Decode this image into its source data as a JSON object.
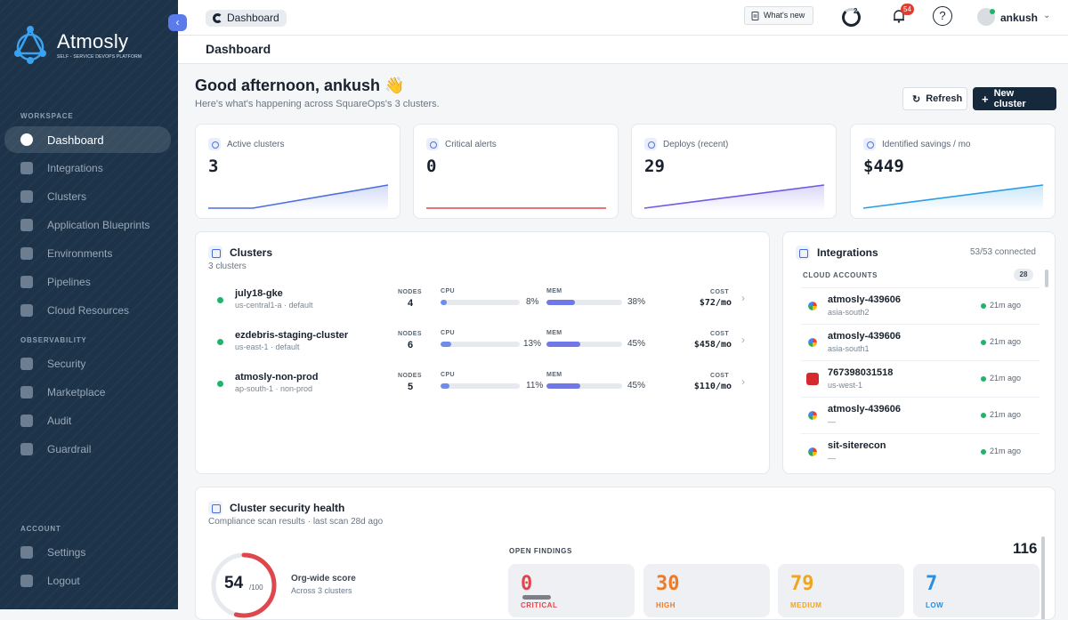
{
  "sidebar": {
    "brand": "Atmosly",
    "tagline": "SELF - SERVICE DEVOPS PLATFORM",
    "sections": {
      "workspace": "WORKSPACE",
      "observability": "OBSERVABILITY",
      "account": "ACCOUNT"
    },
    "items": [
      {
        "label": "Dashboard",
        "icon": "pie-chart-icon",
        "active": true
      },
      {
        "label": "Integrations",
        "icon": "integrations-icon"
      },
      {
        "label": "Clusters",
        "icon": "clusters-icon"
      },
      {
        "label": "Application Blueprints",
        "icon": "blueprint-icon"
      },
      {
        "label": "Environments",
        "icon": "cloud-icon"
      },
      {
        "label": "Pipelines",
        "icon": "pipelines-icon"
      },
      {
        "label": "Cloud Resources",
        "icon": "cloud-resources-icon"
      },
      {
        "label": "Security",
        "icon": "security-icon"
      },
      {
        "label": "Marketplace",
        "icon": "marketplace-icon"
      },
      {
        "label": "Audit",
        "icon": "audit-icon"
      },
      {
        "label": "Guardrail",
        "icon": "guardrail-icon"
      },
      {
        "label": "Settings",
        "icon": "gear-icon"
      },
      {
        "label": "Logout",
        "icon": "logout-icon"
      }
    ]
  },
  "topbar": {
    "breadcrumb": "Dashboard",
    "whats_new": "What's new",
    "tasks_count": "2",
    "notifications_count": "54",
    "help": "?",
    "user": "ankush"
  },
  "page": {
    "title": "Dashboard",
    "greeting": "Good afternoon, ankush 👋",
    "subtitle": "Here's what's happening across SquareOps's 3 clusters.",
    "refresh_label": "Refresh",
    "new_cluster_label": "New cluster"
  },
  "kpis": [
    {
      "label": "Active clusters",
      "value": "3",
      "color": "#4a6fe0"
    },
    {
      "label": "Critical alerts",
      "value": "0",
      "color": "#e0474c"
    },
    {
      "label": "Deploys (recent)",
      "value": "29",
      "color": "#6b5be6"
    },
    {
      "label": "Identified savings / mo",
      "value": "$449",
      "color": "#2a9de4"
    }
  ],
  "clusters": {
    "title": "Clusters",
    "subtitle": "3 clusters",
    "labels": {
      "nodes": "NODES",
      "cpu": "CPU",
      "mem": "MEM",
      "cost": "COST"
    },
    "rows": [
      {
        "name": "july18-gke",
        "meta": "us-central1-a · default",
        "nodes": "4",
        "cpu": 8,
        "cpu_label": "8%",
        "mem": 38,
        "mem_label": "38%",
        "cost": "$72/mo"
      },
      {
        "name": "ezdebris-staging-cluster",
        "meta": "us-east-1 · default",
        "nodes": "6",
        "cpu": 13,
        "cpu_label": "13%",
        "mem": 45,
        "mem_label": "45%",
        "cost": "$458/mo"
      },
      {
        "name": "atmosly-non-prod",
        "meta": "ap-south-1 · non-prod",
        "nodes": "5",
        "cpu": 11,
        "cpu_label": "11%",
        "mem": 45,
        "mem_label": "45%",
        "cost": "$110/mo"
      }
    ]
  },
  "integrations": {
    "title": "Integrations",
    "connected": "53/53 connected",
    "cloud_accounts_label": "CLOUD ACCOUNTS",
    "cloud_accounts_count": "28",
    "rows": [
      {
        "name": "atmosly-439606",
        "region": "asia-south2",
        "time": "21m ago",
        "logo": "gcp-icon"
      },
      {
        "name": "atmosly-439606",
        "region": "asia-south1",
        "time": "21m ago",
        "logo": "gcp-icon"
      },
      {
        "name": "767398031518",
        "region": "us-west-1",
        "time": "21m ago",
        "logo": "aws-icon"
      },
      {
        "name": "atmosly-439606",
        "region": "—",
        "time": "21m ago",
        "logo": "gcp-icon"
      },
      {
        "name": "sit-siterecon",
        "region": "—",
        "time": "21m ago",
        "logo": "gcp-icon"
      }
    ]
  },
  "security": {
    "title": "Cluster security health",
    "subtitle": "Compliance scan results · last scan 28d ago",
    "score": "54",
    "score_max": "/100",
    "score_value": 54,
    "score_label": "Org-wide score",
    "score_sub": "Across 3 clusters",
    "open_findings_label": "OPEN FINDINGS",
    "open_findings_total": "116",
    "findings": [
      {
        "label": "CRITICAL",
        "value": "0",
        "color": "#e0474c"
      },
      {
        "label": "HIGH",
        "value": "30",
        "color": "#ee7a27"
      },
      {
        "label": "MEDIUM",
        "value": "79",
        "color": "#f0a521"
      },
      {
        "label": "LOW",
        "value": "7",
        "color": "#2a8fe0"
      }
    ]
  }
}
